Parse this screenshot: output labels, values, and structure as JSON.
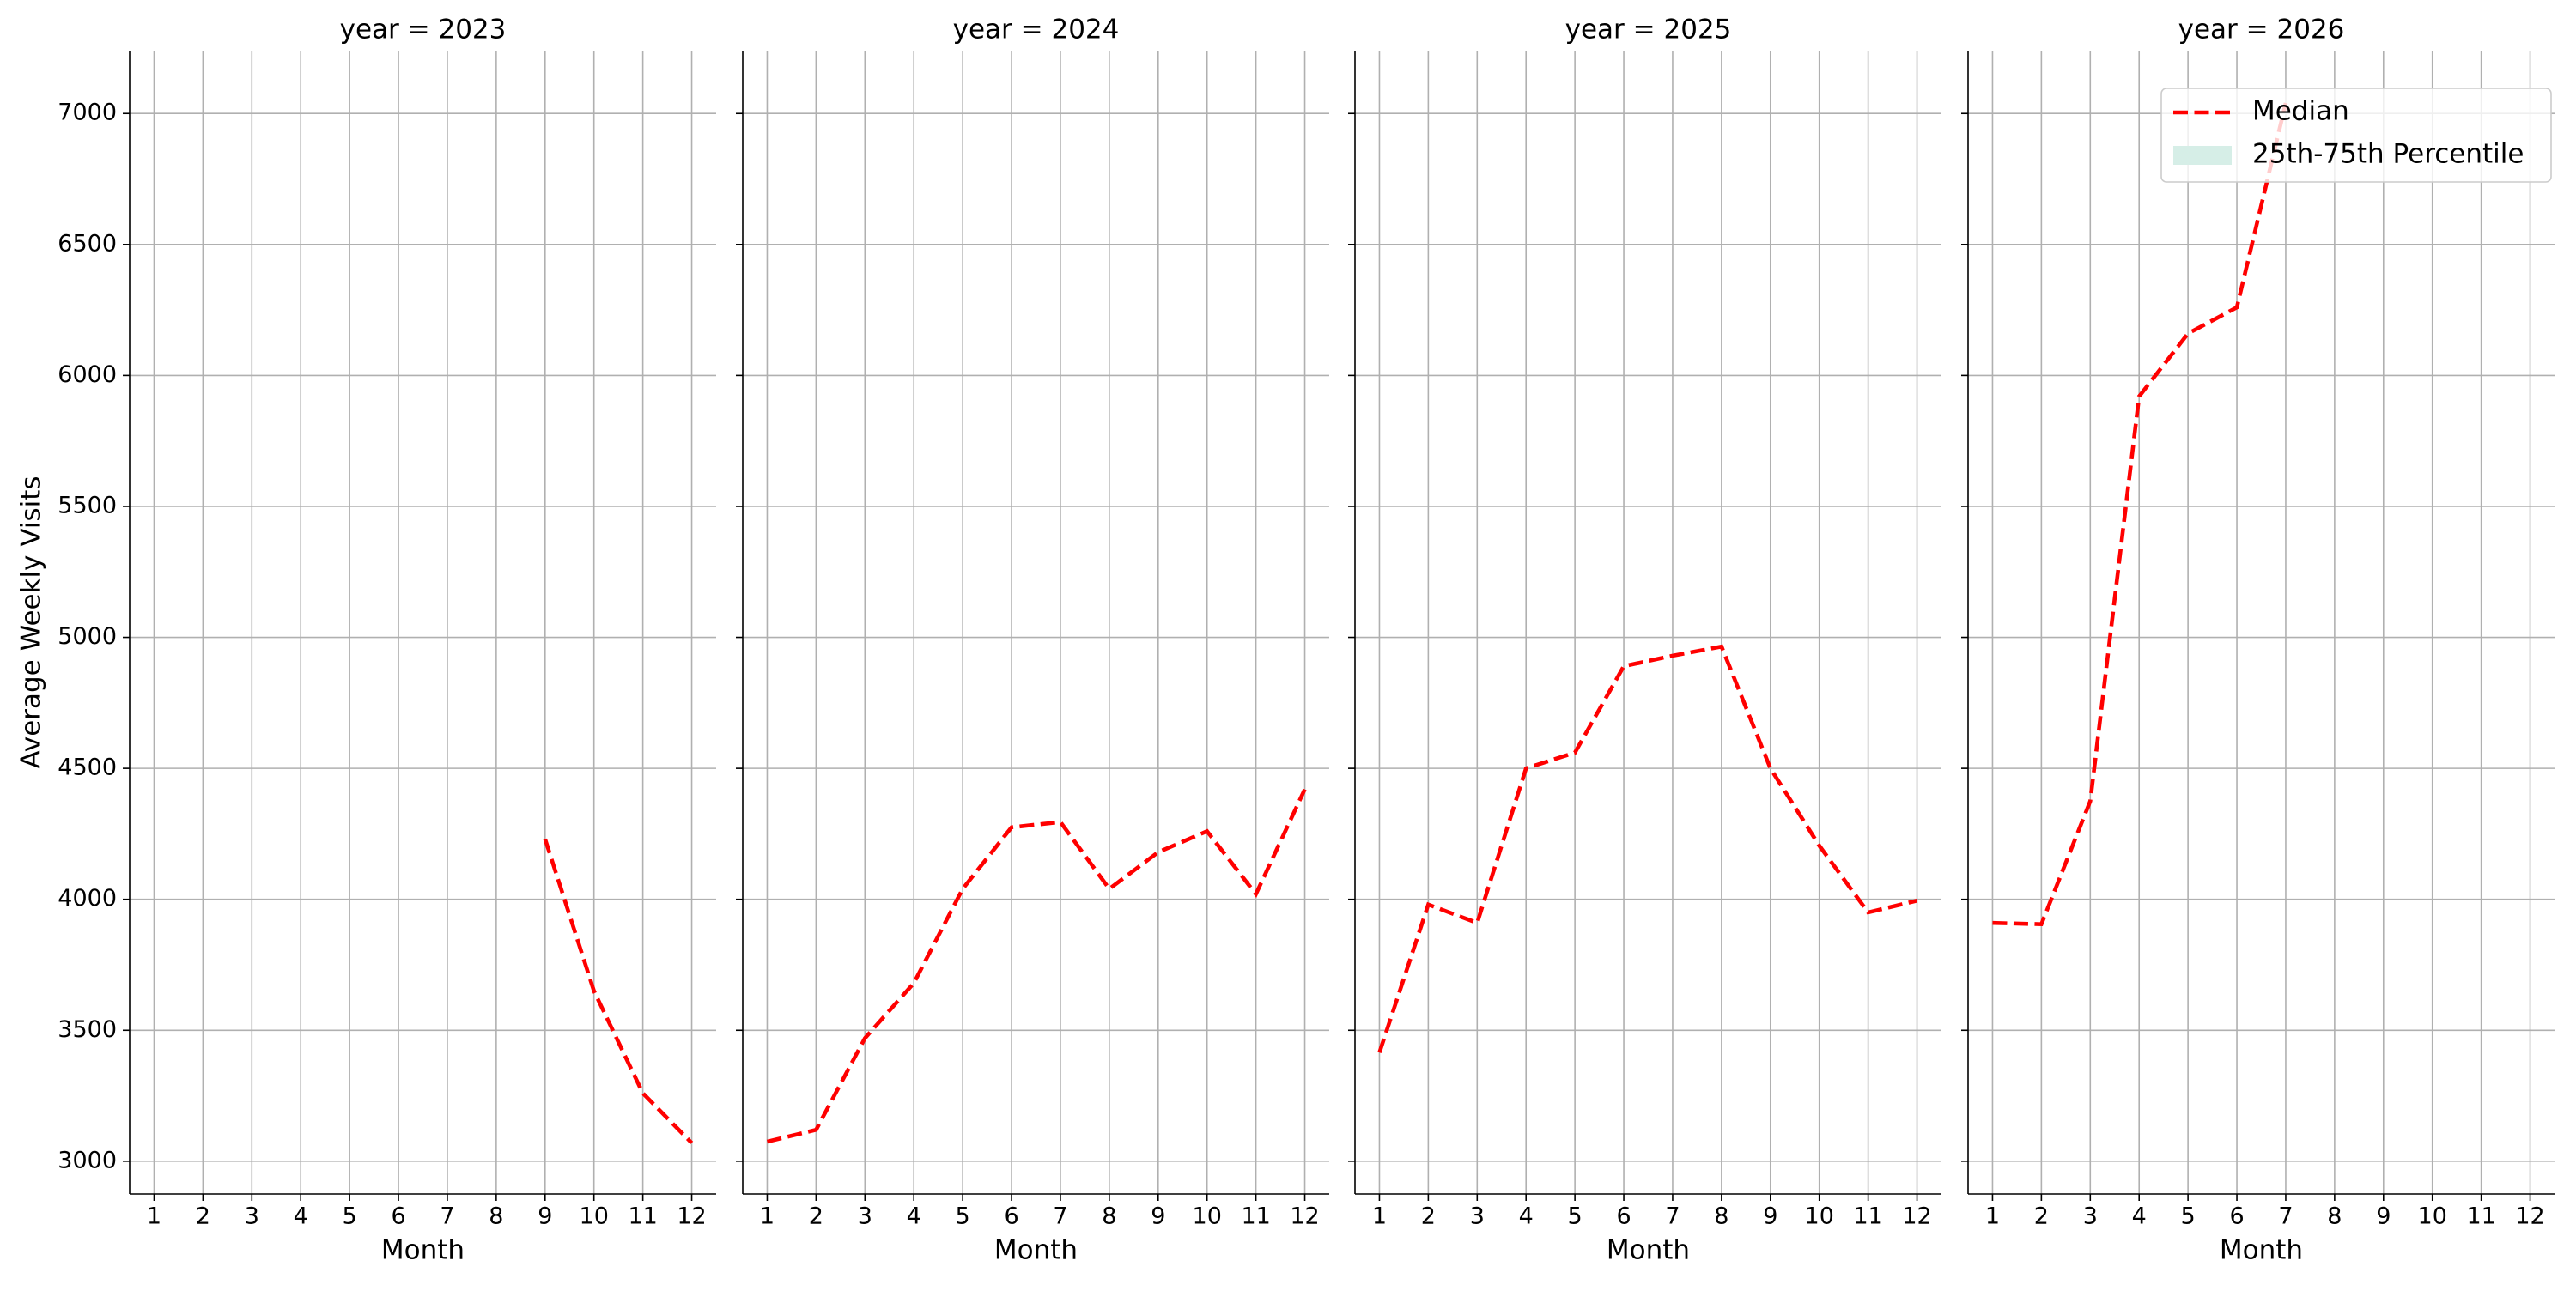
{
  "chart_data": [
    {
      "type": "line",
      "title": "year = 2023",
      "xlabel": "Month",
      "ylabel": "Average Weekly Visits",
      "show_ytick_labels": true,
      "grid": true,
      "x": [
        1,
        2,
        3,
        4,
        5,
        6,
        7,
        8,
        9,
        10,
        11,
        12
      ],
      "xlim": [
        0.5,
        12.5
      ],
      "xticks": [
        1,
        2,
        3,
        4,
        5,
        6,
        7,
        8,
        9,
        10,
        11,
        12
      ],
      "ylim": [
        2875,
        7240
      ],
      "yticks": [
        3000,
        3500,
        4000,
        4500,
        5000,
        5500,
        6000,
        6500,
        7000
      ],
      "series": [
        {
          "name": "Median",
          "color": "#ff0000",
          "values": [
            null,
            null,
            null,
            null,
            null,
            null,
            null,
            null,
            4230,
            3650,
            3260,
            3070
          ]
        }
      ]
    },
    {
      "type": "line",
      "title": "year = 2024",
      "xlabel": "Month",
      "show_ytick_labels": false,
      "grid": true,
      "x": [
        1,
        2,
        3,
        4,
        5,
        6,
        7,
        8,
        9,
        10,
        11,
        12
      ],
      "xlim": [
        0.5,
        12.5
      ],
      "xticks": [
        1,
        2,
        3,
        4,
        5,
        6,
        7,
        8,
        9,
        10,
        11,
        12
      ],
      "ylim": [
        2875,
        7240
      ],
      "yticks": [
        3000,
        3500,
        4000,
        4500,
        5000,
        5500,
        6000,
        6500,
        7000
      ],
      "series": [
        {
          "name": "Median",
          "color": "#ff0000",
          "values": [
            3075,
            3120,
            3470,
            3680,
            4040,
            4275,
            4295,
            4040,
            4180,
            4260,
            4020,
            4420
          ]
        }
      ]
    },
    {
      "type": "line",
      "title": "year = 2025",
      "xlabel": "Month",
      "show_ytick_labels": false,
      "grid": true,
      "x": [
        1,
        2,
        3,
        4,
        5,
        6,
        7,
        8,
        9,
        10,
        11,
        12
      ],
      "xlim": [
        0.5,
        12.5
      ],
      "xticks": [
        1,
        2,
        3,
        4,
        5,
        6,
        7,
        8,
        9,
        10,
        11,
        12
      ],
      "ylim": [
        2875,
        7240
      ],
      "yticks": [
        3000,
        3500,
        4000,
        4500,
        5000,
        5500,
        6000,
        6500,
        7000
      ],
      "series": [
        {
          "name": "Median",
          "color": "#ff0000",
          "values": [
            3415,
            3980,
            3910,
            4500,
            4560,
            4890,
            4930,
            4965,
            4500,
            4205,
            3950,
            3995
          ]
        }
      ]
    },
    {
      "type": "line",
      "title": "year = 2026",
      "xlabel": "Month",
      "show_ytick_labels": false,
      "grid": true,
      "legend": "upper right",
      "x": [
        1,
        2,
        3,
        4,
        5,
        6,
        7,
        8,
        9,
        10,
        11,
        12
      ],
      "xlim": [
        0.5,
        12.5
      ],
      "xticks": [
        1,
        2,
        3,
        4,
        5,
        6,
        7,
        8,
        9,
        10,
        11,
        12
      ],
      "ylim": [
        2875,
        7240
      ],
      "yticks": [
        3000,
        3500,
        4000,
        4500,
        5000,
        5500,
        6000,
        6500,
        7000
      ],
      "series": [
        {
          "name": "Median",
          "color": "#ff0000",
          "values": [
            3910,
            3905,
            4375,
            5920,
            6160,
            6260,
            7040,
            null,
            null,
            null,
            null,
            null
          ]
        },
        {
          "name": "25th-75th Percentile",
          "color": "#d6eee7",
          "kind": "band",
          "values": [
            null,
            null,
            null,
            null,
            null,
            null,
            null,
            null,
            null,
            null,
            null,
            null
          ]
        }
      ]
    }
  ]
}
